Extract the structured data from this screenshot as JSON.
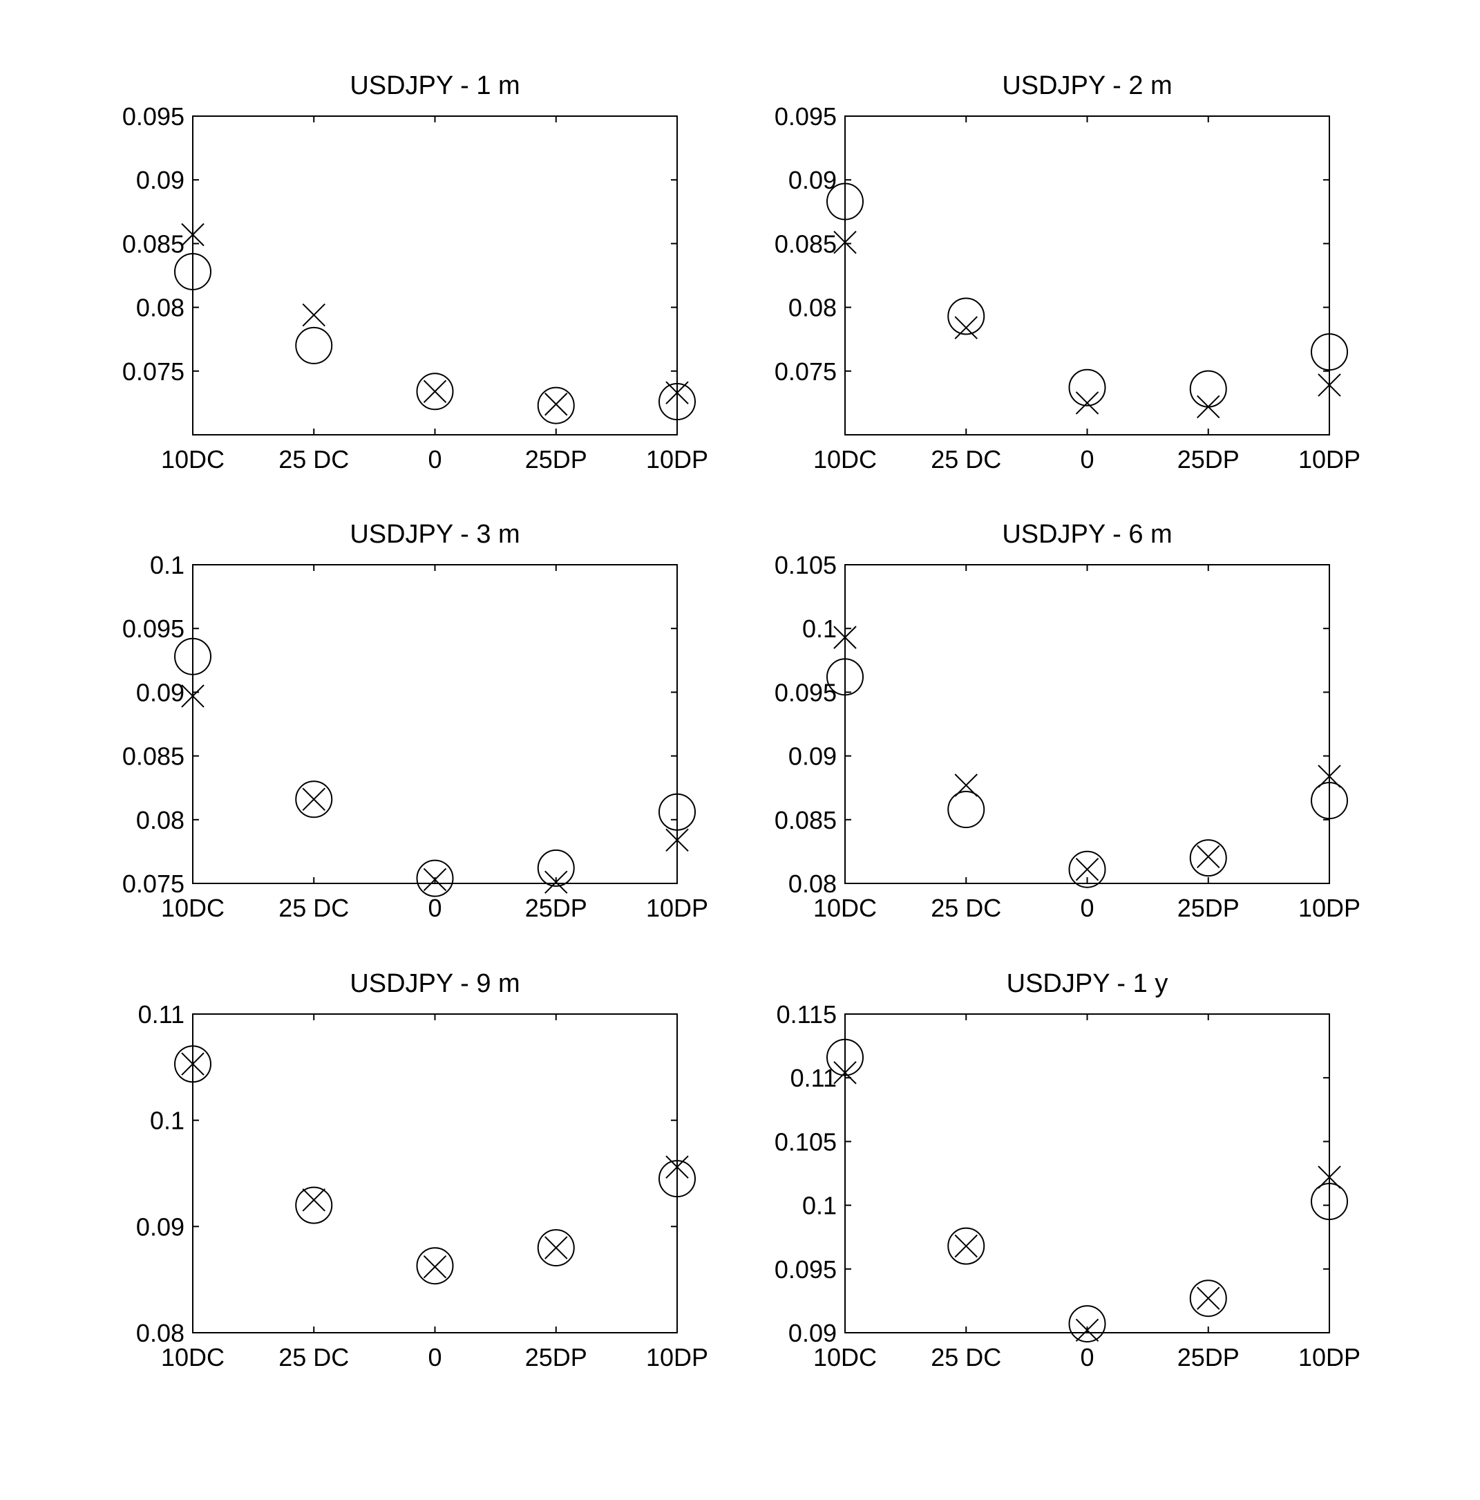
{
  "figure": {
    "background": "#ffffff",
    "foreground": "#000000",
    "marker_legend": {
      "circle": "o",
      "cross": "x"
    }
  },
  "chart_data": [
    {
      "type": "scatter",
      "title": "USDJPY - 1 m",
      "categories": [
        "10DC",
        "25 DC",
        "0",
        "25DP",
        "10DP"
      ],
      "ylim": [
        0.07,
        0.095
      ],
      "yticks": [
        0.075,
        0.08,
        0.085,
        0.09,
        0.095
      ],
      "ytick_labels": [
        "0.075",
        "0.08",
        "0.085",
        "0.09",
        "0.095"
      ],
      "grid": false,
      "series": [
        {
          "marker": "circle",
          "values": [
            0.0828,
            0.077,
            0.0734,
            0.0723,
            0.0726
          ]
        },
        {
          "marker": "cross",
          "values": [
            0.0857,
            0.0794,
            0.0734,
            0.0724,
            0.0733
          ]
        }
      ]
    },
    {
      "type": "scatter",
      "title": "USDJPY - 2 m",
      "categories": [
        "10DC",
        "25 DC",
        "0",
        "25DP",
        "10DP"
      ],
      "ylim": [
        0.07,
        0.095
      ],
      "yticks": [
        0.075,
        0.08,
        0.085,
        0.09,
        0.095
      ],
      "ytick_labels": [
        "0.075",
        "0.08",
        "0.085",
        "0.09",
        "0.095"
      ],
      "grid": false,
      "series": [
        {
          "marker": "circle",
          "values": [
            0.0883,
            0.0793,
            0.0737,
            0.0736,
            0.0765
          ]
        },
        {
          "marker": "cross",
          "values": [
            0.0851,
            0.0784,
            0.0725,
            0.0722,
            0.0739
          ]
        }
      ]
    },
    {
      "type": "scatter",
      "title": "USDJPY - 3 m",
      "categories": [
        "10DC",
        "25 DC",
        "0",
        "25DP",
        "10DP"
      ],
      "ylim": [
        0.075,
        0.1
      ],
      "yticks": [
        0.075,
        0.08,
        0.085,
        0.09,
        0.095,
        0.1
      ],
      "ytick_labels": [
        "0.075",
        "0.08",
        "0.085",
        "0.09",
        "0.095",
        "0.1"
      ],
      "grid": false,
      "series": [
        {
          "marker": "circle",
          "values": [
            0.0928,
            0.0816,
            0.0754,
            0.0762,
            0.0806
          ]
        },
        {
          "marker": "cross",
          "values": [
            0.0897,
            0.0816,
            0.0753,
            0.0751,
            0.0784
          ]
        }
      ]
    },
    {
      "type": "scatter",
      "title": "USDJPY - 6 m",
      "categories": [
        "10DC",
        "25 DC",
        "0",
        "25DP",
        "10DP"
      ],
      "ylim": [
        0.08,
        0.105
      ],
      "yticks": [
        0.08,
        0.085,
        0.09,
        0.095,
        0.1,
        0.105
      ],
      "ytick_labels": [
        "0.08",
        "0.085",
        "0.09",
        "0.095",
        "0.1",
        "0.105"
      ],
      "grid": false,
      "series": [
        {
          "marker": "circle",
          "values": [
            0.0962,
            0.0858,
            0.0811,
            0.082,
            0.0865
          ]
        },
        {
          "marker": "cross",
          "values": [
            0.0993,
            0.0877,
            0.0811,
            0.0821,
            0.0884
          ]
        }
      ]
    },
    {
      "type": "scatter",
      "title": "USDJPY - 9 m",
      "categories": [
        "10DC",
        "25 DC",
        "0",
        "25DP",
        "10DP"
      ],
      "ylim": [
        0.08,
        0.11
      ],
      "yticks": [
        0.08,
        0.09,
        0.1,
        0.11
      ],
      "ytick_labels": [
        "0.08",
        "0.09",
        "0.1",
        "0.11"
      ],
      "grid": false,
      "series": [
        {
          "marker": "circle",
          "values": [
            0.1053,
            0.092,
            0.0863,
            0.088,
            0.0945
          ]
        },
        {
          "marker": "cross",
          "values": [
            0.1053,
            0.0925,
            0.0862,
            0.088,
            0.0956
          ]
        }
      ]
    },
    {
      "type": "scatter",
      "title": "USDJPY - 1 y",
      "categories": [
        "10DC",
        "25 DC",
        "0",
        "25DP",
        "10DP"
      ],
      "ylim": [
        0.09,
        0.115
      ],
      "yticks": [
        0.09,
        0.095,
        0.1,
        0.105,
        0.11,
        0.115
      ],
      "ytick_labels": [
        "0.09",
        "0.095",
        "0.1",
        "0.105",
        "0.11",
        "0.115"
      ],
      "grid": false,
      "series": [
        {
          "marker": "circle",
          "values": [
            0.1116,
            0.0968,
            0.0907,
            0.0927,
            0.1003
          ]
        },
        {
          "marker": "cross",
          "values": [
            0.1104,
            0.0968,
            0.0902,
            0.0927,
            0.1022
          ]
        }
      ]
    }
  ]
}
